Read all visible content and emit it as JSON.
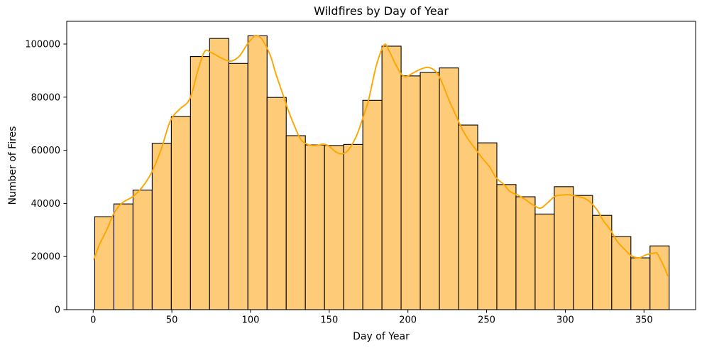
{
  "figure": {
    "title": "Wildfires by Day of Year",
    "xlabel": "Day of Year",
    "ylabel": "Number of Fires"
  },
  "colors": {
    "bar_fill": "#FECB78",
    "bar_edge": "#000000",
    "kde_line": "#FFA500",
    "axis": "#000000",
    "background": "#FFFFFF",
    "text": "#000000"
  },
  "chart_data": {
    "type": "bar",
    "subtype": "histogram-with-kde",
    "title": "Wildfires by Day of Year",
    "xlabel": "Day of Year",
    "ylabel": "Number of Fires",
    "xlim": [
      -16.8,
      382.8
    ],
    "ylim": [
      0,
      108556
    ],
    "x_ticks": [
      0,
      50,
      100,
      150,
      200,
      250,
      300,
      350
    ],
    "y_ticks": [
      0,
      20000,
      40000,
      60000,
      80000,
      100000
    ],
    "grid": false,
    "legend": "none",
    "bins": {
      "start_day": 1,
      "end_day": 366,
      "count": 30,
      "width_days": 12.1667
    },
    "bar_values": [
      35000,
      39800,
      45000,
      62600,
      72700,
      95300,
      102100,
      92700,
      103100,
      79900,
      65500,
      62000,
      61800,
      62200,
      78800,
      99200,
      88000,
      89300,
      91000,
      69500,
      62800,
      47100,
      42500,
      36000,
      46300,
      43000,
      35500,
      27500,
      19500,
      24000
    ],
    "kde_line": {
      "x": [
        0.5,
        4,
        9,
        13,
        18,
        25,
        31,
        37,
        43,
        49,
        55,
        60,
        63,
        67,
        71,
        75,
        80,
        84,
        88,
        93,
        98,
        102,
        104,
        107,
        110,
        113,
        116,
        120,
        124,
        128,
        132,
        137,
        142,
        146,
        150,
        154,
        158,
        162,
        167,
        171,
        175,
        180,
        185,
        188,
        192,
        196,
        199,
        203,
        208,
        213,
        218,
        222,
        226,
        230,
        234,
        238,
        243,
        247,
        252,
        256,
        261,
        265,
        270,
        274,
        279,
        284,
        288,
        293,
        297,
        302,
        306,
        311,
        315,
        320,
        324,
        329,
        333,
        338,
        342,
        347,
        351,
        356,
        358,
        360,
        363,
        365
      ],
      "y": [
        19000,
        24500,
        30500,
        36000,
        40000,
        42500,
        46000,
        51500,
        60000,
        71000,
        75500,
        78000,
        82000,
        91000,
        97300,
        96800,
        95200,
        94000,
        93600,
        95500,
        100000,
        102700,
        103200,
        102000,
        99000,
        95000,
        89000,
        82000,
        75000,
        69000,
        64000,
        62000,
        61800,
        62300,
        61500,
        59500,
        58600,
        60000,
        65000,
        71500,
        79000,
        92000,
        99700,
        97500,
        92500,
        88500,
        87700,
        89000,
        90500,
        91200,
        89500,
        85000,
        79000,
        73800,
        68500,
        64400,
        60400,
        57200,
        53700,
        49700,
        47100,
        44400,
        43100,
        41700,
        39600,
        38200,
        39800,
        42500,
        43100,
        43300,
        42800,
        42200,
        40900,
        37700,
        33700,
        29700,
        25700,
        22500,
        20300,
        19500,
        20600,
        21200,
        21400,
        19500,
        15800,
        12800
      ]
    }
  }
}
